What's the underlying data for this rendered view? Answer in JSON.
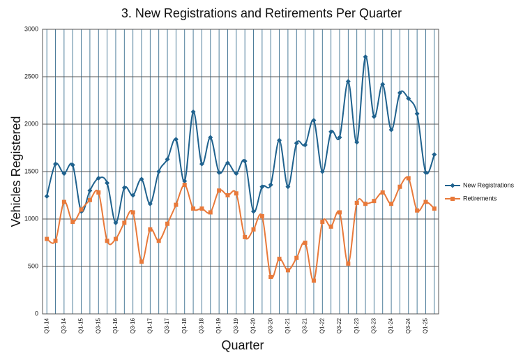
{
  "chart_data": {
    "type": "line",
    "title": "3. New Registrations and Retirements Per Quarter",
    "x_label": "Quarter",
    "y_label": "Vehicles Registered",
    "categories": [
      "Q1-14",
      null,
      "Q3-14",
      null,
      "Q1-15",
      null,
      "Q3-15",
      null,
      "Q1-16",
      null,
      "Q3-16",
      null,
      "Q1-17",
      null,
      "Q3-17",
      null,
      "Q1-18",
      null,
      "Q3-18",
      null,
      "Q1-19",
      null,
      "Q3-19",
      null,
      "Q1-20",
      null,
      "Q3-20",
      null,
      "Q1-21",
      null,
      "Q3-21",
      null,
      "Q1-22",
      null,
      "Q3-22",
      null,
      "Q1-23",
      null,
      "Q3-23",
      null,
      "Q1-24",
      null,
      "Q3-24",
      null,
      "Q1-25",
      null
    ],
    "series": [
      {
        "name": "New Registrations",
        "color": "#1f628e",
        "marker": "diamond",
        "values": [
          1240,
          1580,
          1480,
          1570,
          1080,
          1300,
          1430,
          1380,
          960,
          1330,
          1250,
          1420,
          1160,
          1500,
          1630,
          1840,
          1400,
          2130,
          1580,
          1860,
          1490,
          1590,
          1480,
          1610,
          1080,
          1340,
          1360,
          1830,
          1340,
          1800,
          1780,
          2040,
          1500,
          1920,
          1860,
          2450,
          1810,
          2710,
          2080,
          2420,
          1940,
          2330,
          2270,
          2110,
          1490,
          1680
        ]
      },
      {
        "name": "Retirements",
        "color": "#e8793a",
        "marker": "square",
        "values": [
          790,
          770,
          1180,
          970,
          1100,
          1200,
          1280,
          770,
          790,
          960,
          1070,
          550,
          890,
          770,
          950,
          1150,
          1360,
          1110,
          1110,
          1070,
          1300,
          1250,
          1270,
          810,
          890,
          1030,
          390,
          580,
          460,
          590,
          750,
          350,
          970,
          920,
          1070,
          530,
          1170,
          1160,
          1190,
          1280,
          1160,
          1340,
          1430,
          1090,
          1180,
          1110
        ]
      }
    ],
    "ylim": [
      0,
      3000
    ],
    "yticks": [
      0,
      500,
      1000,
      1500,
      2000,
      2500,
      3000
    ],
    "grid": true,
    "legend": "right"
  }
}
